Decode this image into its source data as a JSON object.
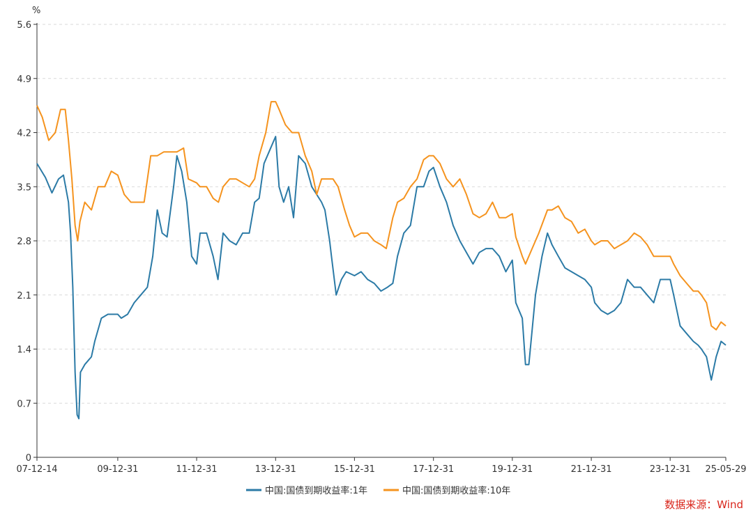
{
  "chart_data": {
    "type": "line",
    "unit": "%",
    "source": "数据来源：Wind",
    "y_ticks": [
      "0",
      "0.7",
      "1.4",
      "2.1",
      "2.8",
      "3.5",
      "4.2",
      "4.9",
      "5.6"
    ],
    "ylim": [
      0,
      5.6
    ],
    "x_ticks": [
      "07-12-14",
      "09-12-31",
      "11-12-31",
      "13-12-31",
      "15-12-31",
      "17-12-31",
      "19-12-31",
      "21-12-31",
      "23-12-31",
      "25-05-29"
    ],
    "x_tick_dates": [
      "2007-12-14",
      "2009-12-31",
      "2011-12-31",
      "2013-12-31",
      "2015-12-31",
      "2017-12-31",
      "2019-12-31",
      "2021-12-31",
      "2023-12-31",
      "2025-05-29"
    ],
    "xlim": [
      "2007-12-14",
      "2025-05-29"
    ],
    "grid": true,
    "legend_position": "bottom",
    "colors": {
      "1Y": "#2b7aa6",
      "10Y": "#f5931e"
    },
    "series": [
      {
        "name": "中国:国债到期收益率:1年",
        "key": "1Y",
        "x": [
          "2007-12-14",
          "2008-03-01",
          "2008-05-01",
          "2008-07-01",
          "2008-08-15",
          "2008-10-01",
          "2008-10-20",
          "2008-11-10",
          "2008-12-01",
          "2008-12-20",
          "2009-01-05",
          "2009-01-20",
          "2009-03-01",
          "2009-05-01",
          "2009-06-01",
          "2009-08-01",
          "2009-10-01",
          "2009-12-31",
          "2010-02-01",
          "2010-04-01",
          "2010-06-01",
          "2010-08-01",
          "2010-10-01",
          "2010-11-20",
          "2011-01-01",
          "2011-02-15",
          "2011-04-01",
          "2011-06-01",
          "2011-07-01",
          "2011-08-15",
          "2011-10-01",
          "2011-11-15",
          "2011-12-31",
          "2012-02-01",
          "2012-04-01",
          "2012-06-01",
          "2012-07-15",
          "2012-09-01",
          "2012-11-01",
          "2012-12-31",
          "2013-03-01",
          "2013-05-01",
          "2013-06-20",
          "2013-08-01",
          "2013-09-15",
          "2013-11-15",
          "2013-12-31",
          "2014-02-01",
          "2014-03-15",
          "2014-05-01",
          "2014-06-15",
          "2014-08-01",
          "2014-10-01",
          "2014-12-01",
          "2015-01-15",
          "2015-03-01",
          "2015-04-01",
          "2015-05-15",
          "2015-06-01",
          "2015-07-15",
          "2015-09-01",
          "2015-10-15",
          "2015-12-31",
          "2016-03-01",
          "2016-05-01",
          "2016-07-01",
          "2016-09-01",
          "2016-11-01",
          "2016-12-20",
          "2017-02-01",
          "2017-04-01",
          "2017-06-01",
          "2017-08-01",
          "2017-10-01",
          "2017-11-20",
          "2017-12-31",
          "2018-03-01",
          "2018-05-01",
          "2018-07-01",
          "2018-09-01",
          "2018-11-01",
          "2019-01-01",
          "2019-03-01",
          "2019-05-01",
          "2019-07-01",
          "2019-09-01",
          "2019-11-01",
          "2019-12-31",
          "2020-02-01",
          "2020-04-01",
          "2020-05-01",
          "2020-06-01",
          "2020-08-01",
          "2020-10-01",
          "2020-11-20",
          "2021-01-01",
          "2021-03-01",
          "2021-05-01",
          "2021-07-01",
          "2021-09-01",
          "2021-11-01",
          "2021-12-31",
          "2022-02-01",
          "2022-04-01",
          "2022-06-01",
          "2022-08-01",
          "2022-10-01",
          "2022-12-01",
          "2023-02-01",
          "2023-04-01",
          "2023-06-01",
          "2023-08-01",
          "2023-10-01",
          "2023-12-31",
          "2024-02-01",
          "2024-04-01",
          "2024-06-01",
          "2024-08-01",
          "2024-09-15",
          "2024-10-15",
          "2024-12-01",
          "2025-01-15",
          "2025-03-01",
          "2025-04-15",
          "2025-05-29"
        ],
        "values": [
          3.8,
          3.62,
          3.42,
          3.6,
          3.65,
          3.3,
          2.9,
          2.2,
          1.1,
          0.55,
          0.5,
          1.1,
          1.2,
          1.3,
          1.5,
          1.8,
          1.85,
          1.85,
          1.8,
          1.85,
          2.0,
          2.1,
          2.2,
          2.6,
          3.2,
          2.9,
          2.85,
          3.5,
          3.9,
          3.7,
          3.3,
          2.6,
          2.5,
          2.9,
          2.9,
          2.6,
          2.3,
          2.9,
          2.8,
          2.75,
          2.9,
          2.9,
          3.3,
          3.35,
          3.8,
          4.0,
          4.15,
          3.5,
          3.3,
          3.5,
          3.1,
          3.9,
          3.8,
          3.5,
          3.4,
          3.3,
          3.2,
          2.8,
          2.6,
          2.1,
          2.3,
          2.4,
          2.35,
          2.4,
          2.3,
          2.25,
          2.15,
          2.2,
          2.25,
          2.6,
          2.9,
          3.0,
          3.5,
          3.5,
          3.7,
          3.75,
          3.5,
          3.3,
          3.0,
          2.8,
          2.65,
          2.5,
          2.65,
          2.7,
          2.7,
          2.6,
          2.4,
          2.55,
          2.0,
          1.8,
          1.2,
          1.2,
          2.1,
          2.6,
          2.9,
          2.75,
          2.6,
          2.45,
          2.4,
          2.35,
          2.3,
          2.2,
          2.0,
          1.9,
          1.85,
          1.9,
          2.0,
          2.3,
          2.2,
          2.2,
          2.1,
          2.0,
          2.3,
          2.3,
          2.1,
          1.7,
          1.6,
          1.5,
          1.45,
          1.4,
          1.3,
          1.0,
          1.3,
          1.5,
          1.45
        ]
      },
      {
        "name": "中国:国债到期收益率:10年",
        "key": "10Y",
        "x": [
          "2007-12-14",
          "2008-02-01",
          "2008-04-01",
          "2008-06-01",
          "2008-07-20",
          "2008-09-01",
          "2008-10-01",
          "2008-11-01",
          "2008-12-01",
          "2008-12-25",
          "2009-01-15",
          "2009-03-01",
          "2009-05-01",
          "2009-07-01",
          "2009-09-01",
          "2009-11-01",
          "2009-12-31",
          "2010-03-01",
          "2010-05-01",
          "2010-07-01",
          "2010-09-01",
          "2010-11-01",
          "2010-12-31",
          "2011-03-01",
          "2011-05-01",
          "2011-07-01",
          "2011-09-01",
          "2011-10-15",
          "2011-12-31",
          "2012-02-01",
          "2012-04-01",
          "2012-06-01",
          "2012-07-20",
          "2012-09-01",
          "2012-11-01",
          "2012-12-31",
          "2013-03-01",
          "2013-05-01",
          "2013-06-20",
          "2013-08-01",
          "2013-10-01",
          "2013-11-20",
          "2013-12-31",
          "2014-02-01",
          "2014-04-01",
          "2014-06-01",
          "2014-08-01",
          "2014-10-01",
          "2014-12-01",
          "2015-01-15",
          "2015-03-01",
          "2015-05-01",
          "2015-06-15",
          "2015-08-01",
          "2015-10-01",
          "2015-11-15",
          "2015-12-31",
          "2016-03-01",
          "2016-05-01",
          "2016-07-01",
          "2016-09-01",
          "2016-10-20",
          "2016-12-20",
          "2017-02-01",
          "2017-04-01",
          "2017-06-01",
          "2017-08-01",
          "2017-10-01",
          "2017-11-20",
          "2017-12-31",
          "2018-03-01",
          "2018-05-01",
          "2018-07-01",
          "2018-09-01",
          "2018-11-01",
          "2019-01-01",
          "2019-03-01",
          "2019-05-01",
          "2019-07-01",
          "2019-09-01",
          "2019-11-01",
          "2019-12-31",
          "2020-02-01",
          "2020-04-01",
          "2020-05-01",
          "2020-07-01",
          "2020-09-01",
          "2020-11-20",
          "2021-01-01",
          "2021-03-01",
          "2021-05-01",
          "2021-07-01",
          "2021-09-01",
          "2021-11-01",
          "2021-12-31",
          "2022-02-01",
          "2022-04-01",
          "2022-06-01",
          "2022-08-01",
          "2022-10-01",
          "2022-12-01",
          "2023-02-01",
          "2023-04-01",
          "2023-06-01",
          "2023-08-01",
          "2023-10-01",
          "2023-12-31",
          "2024-02-01",
          "2024-04-01",
          "2024-06-01",
          "2024-08-01",
          "2024-09-15",
          "2024-10-15",
          "2024-12-01",
          "2025-01-15",
          "2025-03-01",
          "2025-04-15",
          "2025-05-29"
        ],
        "values": [
          4.55,
          4.4,
          4.1,
          4.2,
          4.5,
          4.5,
          4.1,
          3.6,
          3.0,
          2.8,
          3.05,
          3.3,
          3.2,
          3.5,
          3.5,
          3.7,
          3.65,
          3.4,
          3.3,
          3.3,
          3.3,
          3.9,
          3.9,
          3.95,
          3.95,
          3.95,
          4.0,
          3.6,
          3.55,
          3.5,
          3.5,
          3.35,
          3.3,
          3.5,
          3.6,
          3.6,
          3.55,
          3.5,
          3.6,
          3.9,
          4.2,
          4.6,
          4.6,
          4.5,
          4.3,
          4.2,
          4.2,
          3.9,
          3.7,
          3.4,
          3.6,
          3.6,
          3.6,
          3.5,
          3.2,
          3.0,
          2.85,
          2.9,
          2.9,
          2.8,
          2.75,
          2.7,
          3.1,
          3.3,
          3.35,
          3.5,
          3.6,
          3.85,
          3.9,
          3.9,
          3.8,
          3.6,
          3.5,
          3.6,
          3.4,
          3.15,
          3.1,
          3.15,
          3.3,
          3.1,
          3.1,
          3.15,
          2.85,
          2.6,
          2.5,
          2.7,
          2.9,
          3.2,
          3.2,
          3.25,
          3.1,
          3.05,
          2.9,
          2.95,
          2.8,
          2.75,
          2.8,
          2.8,
          2.7,
          2.75,
          2.8,
          2.9,
          2.85,
          2.75,
          2.6,
          2.6,
          2.6,
          2.5,
          2.35,
          2.25,
          2.15,
          2.15,
          2.1,
          2.0,
          1.7,
          1.65,
          1.75,
          1.7
        ]
      }
    ]
  }
}
